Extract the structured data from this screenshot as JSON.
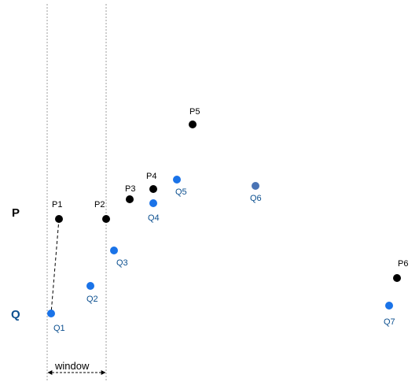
{
  "rows": {
    "p": {
      "label": "P",
      "color": "#000000"
    },
    "q": {
      "label": "Q",
      "color": "#0b4f8f"
    }
  },
  "points": {
    "p1": {
      "label": "P1",
      "color": "#000000"
    },
    "p2": {
      "label": "P2",
      "color": "#000000"
    },
    "p3": {
      "label": "P3",
      "color": "#000000"
    },
    "p4": {
      "label": "P4",
      "color": "#000000"
    },
    "p5": {
      "label": "P5",
      "color": "#000000"
    },
    "p6": {
      "label": "P6",
      "color": "#000000"
    },
    "q1": {
      "label": "Q1",
      "color": "#1a73e8"
    },
    "q2": {
      "label": "Q2",
      "color": "#1a73e8"
    },
    "q3": {
      "label": "Q3",
      "color": "#1a73e8"
    },
    "q4": {
      "label": "Q4",
      "color": "#1a73e8"
    },
    "q5": {
      "label": "Q5",
      "color": "#1a73e8"
    },
    "q6": {
      "label": "Q6",
      "color": "#4a74b5"
    },
    "q7": {
      "label": "Q7",
      "color": "#1a73e8"
    }
  },
  "window": {
    "label": "window"
  },
  "colors": {
    "q_label": "#0b4f8f",
    "guide": "#9e9e9e"
  }
}
